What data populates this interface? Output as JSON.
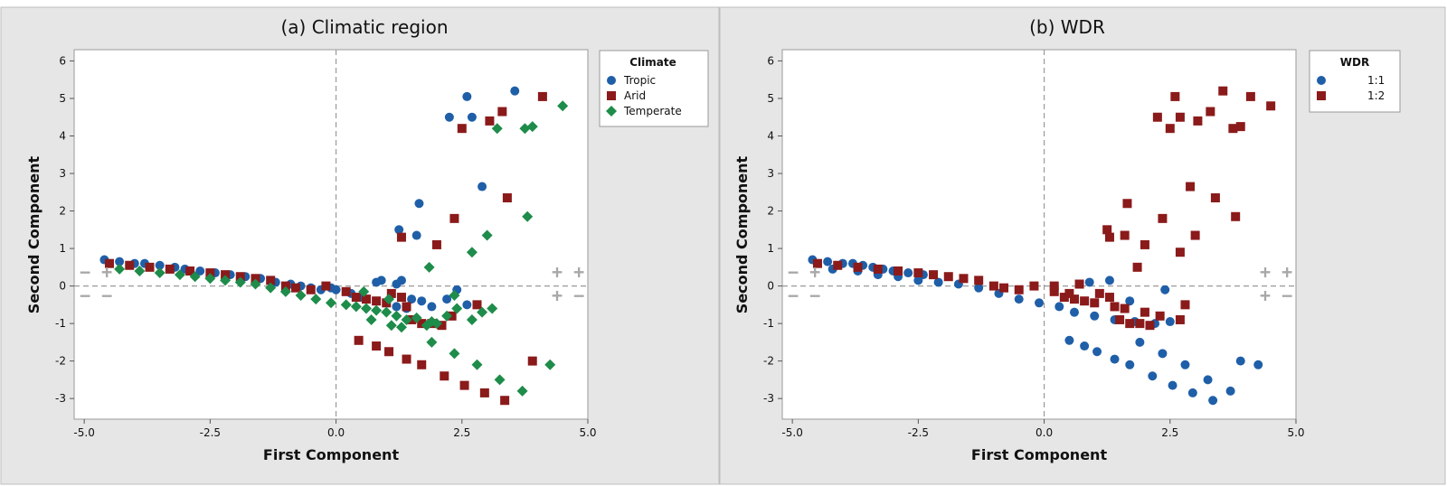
{
  "colors": {
    "tropic": "#1f5fa8",
    "arid": "#8b1a1a",
    "temperate": "#1e8c4a",
    "wdr_1_1": "#1f5fa8",
    "wdr_1_2": "#8b1a1a"
  },
  "chart_data": [
    {
      "type": "scatter",
      "title": "(a) Climatic region",
      "xlabel": "First Component",
      "ylabel": "Second Component",
      "xlim": [
        -5.2,
        5.0
      ],
      "ylim": [
        -3.55,
        6.3
      ],
      "x_ticks": [
        "-5.0",
        "-2.5",
        "0.0",
        "2.5",
        "5.0"
      ],
      "y_ticks": [
        "-3",
        "-2",
        "-1",
        "0",
        "1",
        "2",
        "3",
        "4",
        "5",
        "6"
      ],
      "reference_lines": {
        "x": 0,
        "y": 0
      },
      "quadrant_labels": {
        "top_left": "− +",
        "bottom_left": "− −",
        "top_right": "+ +",
        "bottom_right": "+ −"
      },
      "legend": {
        "title": "Climate",
        "position": "right"
      },
      "series": [
        {
          "name": "Tropic",
          "marker": "circle",
          "color": "#1f5fa8",
          "points": [
            [
              -4.6,
              0.7
            ],
            [
              -4.3,
              0.65
            ],
            [
              -4.0,
              0.6
            ],
            [
              -3.8,
              0.6
            ],
            [
              -3.5,
              0.55
            ],
            [
              -3.2,
              0.5
            ],
            [
              -3.0,
              0.45
            ],
            [
              -2.7,
              0.4
            ],
            [
              -2.4,
              0.35
            ],
            [
              -2.1,
              0.3
            ],
            [
              -1.8,
              0.25
            ],
            [
              -1.5,
              0.2
            ],
            [
              -1.2,
              0.1
            ],
            [
              -0.9,
              0.05
            ],
            [
              -0.7,
              0.0
            ],
            [
              -0.5,
              -0.05
            ],
            [
              -0.3,
              -0.1
            ],
            [
              -0.1,
              -0.05
            ],
            [
              0.0,
              -0.1
            ],
            [
              0.3,
              -0.2
            ],
            [
              0.5,
              -0.3
            ],
            [
              0.8,
              0.1
            ],
            [
              0.9,
              0.15
            ],
            [
              1.2,
              0.05
            ],
            [
              1.3,
              0.15
            ],
            [
              1.2,
              -0.55
            ],
            [
              1.4,
              -0.6
            ],
            [
              1.5,
              -0.35
            ],
            [
              1.7,
              -0.4
            ],
            [
              1.9,
              -0.55
            ],
            [
              2.2,
              -0.35
            ],
            [
              2.4,
              -0.1
            ],
            [
              2.6,
              -0.5
            ],
            [
              1.25,
              1.5
            ],
            [
              1.6,
              1.35
            ],
            [
              1.65,
              2.2
            ],
            [
              2.9,
              2.65
            ],
            [
              2.25,
              4.5
            ],
            [
              2.6,
              5.05
            ],
            [
              2.7,
              4.5
            ],
            [
              3.55,
              5.2
            ]
          ]
        },
        {
          "name": "Arid",
          "marker": "square",
          "color": "#8b1a1a",
          "points": [
            [
              -4.5,
              0.6
            ],
            [
              -4.1,
              0.55
            ],
            [
              -3.7,
              0.5
            ],
            [
              -3.3,
              0.45
            ],
            [
              -2.9,
              0.4
            ],
            [
              -2.5,
              0.35
            ],
            [
              -2.2,
              0.3
            ],
            [
              -1.9,
              0.25
            ],
            [
              -1.6,
              0.2
            ],
            [
              -1.3,
              0.15
            ],
            [
              -1.0,
              0.0
            ],
            [
              -0.8,
              -0.05
            ],
            [
              -0.5,
              -0.1
            ],
            [
              -0.2,
              0.0
            ],
            [
              0.2,
              -0.15
            ],
            [
              0.4,
              -0.3
            ],
            [
              0.6,
              -0.35
            ],
            [
              0.8,
              -0.4
            ],
            [
              1.0,
              -0.45
            ],
            [
              1.3,
              -0.3
            ],
            [
              1.4,
              -0.55
            ],
            [
              1.5,
              -0.9
            ],
            [
              1.7,
              -1.0
            ],
            [
              1.9,
              -1.0
            ],
            [
              2.1,
              -1.05
            ],
            [
              2.3,
              -0.8
            ],
            [
              1.3,
              1.3
            ],
            [
              2.0,
              1.1
            ],
            [
              2.35,
              1.8
            ],
            [
              3.4,
              2.35
            ],
            [
              2.5,
              4.2
            ],
            [
              3.05,
              4.4
            ],
            [
              3.3,
              4.65
            ],
            [
              4.1,
              5.05
            ],
            [
              0.45,
              -1.45
            ],
            [
              0.8,
              -1.6
            ],
            [
              1.05,
              -1.75
            ],
            [
              1.4,
              -1.95
            ],
            [
              1.7,
              -2.1
            ],
            [
              2.15,
              -2.4
            ],
            [
              2.55,
              -2.65
            ],
            [
              2.95,
              -2.85
            ],
            [
              3.35,
              -3.05
            ],
            [
              3.9,
              -2.0
            ],
            [
              2.8,
              -0.5
            ],
            [
              1.1,
              -0.2
            ]
          ]
        },
        {
          "name": "Temperate",
          "marker": "diamond",
          "color": "#1e8c4a",
          "points": [
            [
              -4.3,
              0.45
            ],
            [
              -3.9,
              0.4
            ],
            [
              -3.5,
              0.35
            ],
            [
              -3.1,
              0.3
            ],
            [
              -2.8,
              0.25
            ],
            [
              -2.5,
              0.2
            ],
            [
              -2.2,
              0.15
            ],
            [
              -1.9,
              0.1
            ],
            [
              -1.6,
              0.05
            ],
            [
              -1.3,
              -0.05
            ],
            [
              -1.0,
              -0.15
            ],
            [
              -0.7,
              -0.25
            ],
            [
              -0.4,
              -0.35
            ],
            [
              -0.1,
              -0.45
            ],
            [
              0.2,
              -0.5
            ],
            [
              0.4,
              -0.55
            ],
            [
              0.6,
              -0.6
            ],
            [
              0.8,
              -0.65
            ],
            [
              1.0,
              -0.7
            ],
            [
              1.2,
              -0.8
            ],
            [
              1.4,
              -0.9
            ],
            [
              1.6,
              -0.85
            ],
            [
              1.8,
              -1.05
            ],
            [
              2.0,
              -1.0
            ],
            [
              2.2,
              -0.8
            ],
            [
              2.4,
              -0.6
            ],
            [
              2.7,
              -0.9
            ],
            [
              2.9,
              -0.7
            ],
            [
              3.1,
              -0.6
            ],
            [
              0.7,
              -0.9
            ],
            [
              1.1,
              -1.05
            ],
            [
              1.3,
              -1.1
            ],
            [
              1.85,
              0.5
            ],
            [
              2.7,
              0.9
            ],
            [
              3.0,
              1.35
            ],
            [
              2.35,
              -0.25
            ],
            [
              1.9,
              -0.95
            ],
            [
              1.05,
              -0.35
            ],
            [
              3.8,
              1.85
            ],
            [
              3.2,
              4.2
            ],
            [
              3.75,
              4.2
            ],
            [
              3.9,
              4.25
            ],
            [
              4.5,
              4.8
            ],
            [
              1.9,
              -1.5
            ],
            [
              2.35,
              -1.8
            ],
            [
              2.8,
              -2.1
            ],
            [
              3.25,
              -2.5
            ],
            [
              3.7,
              -2.8
            ],
            [
              4.25,
              -2.1
            ],
            [
              0.55,
              -0.15
            ]
          ]
        }
      ]
    },
    {
      "type": "scatter",
      "title": "(b) WDR",
      "xlabel": "First Component",
      "ylabel": "Second Component",
      "xlim": [
        -5.2,
        5.0
      ],
      "ylim": [
        -3.55,
        6.3
      ],
      "x_ticks": [
        "-5.0",
        "-2.5",
        "0.0",
        "2.5",
        "5.0"
      ],
      "y_ticks": [
        "-3",
        "-2",
        "-1",
        "0",
        "1",
        "2",
        "3",
        "4",
        "5",
        "6"
      ],
      "reference_lines": {
        "x": 0,
        "y": 0
      },
      "quadrant_labels": {
        "top_left": "− +",
        "bottom_left": "− −",
        "top_right": "+ +",
        "bottom_right": "+ −"
      },
      "legend": {
        "title": "WDR",
        "position": "right"
      },
      "series": [
        {
          "name": "1:1",
          "marker": "circle",
          "color": "#1f5fa8",
          "points": [
            [
              -4.6,
              0.7
            ],
            [
              -4.3,
              0.65
            ],
            [
              -4.0,
              0.6
            ],
            [
              -3.8,
              0.6
            ],
            [
              -3.6,
              0.55
            ],
            [
              -3.4,
              0.5
            ],
            [
              -3.2,
              0.45
            ],
            [
              -3.0,
              0.4
            ],
            [
              -2.7,
              0.35
            ],
            [
              -2.4,
              0.3
            ],
            [
              -4.2,
              0.45
            ],
            [
              -3.7,
              0.4
            ],
            [
              -3.3,
              0.3
            ],
            [
              -2.9,
              0.25
            ],
            [
              -2.5,
              0.15
            ],
            [
              -2.1,
              0.1
            ],
            [
              -1.7,
              0.05
            ],
            [
              -1.3,
              -0.05
            ],
            [
              -0.9,
              -0.2
            ],
            [
              -0.5,
              -0.35
            ],
            [
              -0.1,
              -0.45
            ],
            [
              0.3,
              -0.55
            ],
            [
              0.6,
              -0.7
            ],
            [
              1.0,
              -0.8
            ],
            [
              1.4,
              -0.9
            ],
            [
              1.8,
              -0.95
            ],
            [
              2.2,
              -1.0
            ],
            [
              2.5,
              -0.95
            ],
            [
              0.9,
              0.1
            ],
            [
              1.3,
              0.15
            ],
            [
              1.7,
              -0.4
            ],
            [
              2.4,
              -0.1
            ],
            [
              0.5,
              -1.45
            ],
            [
              0.8,
              -1.6
            ],
            [
              1.05,
              -1.75
            ],
            [
              1.4,
              -1.95
            ],
            [
              1.7,
              -2.1
            ],
            [
              2.15,
              -2.4
            ],
            [
              2.55,
              -2.65
            ],
            [
              2.95,
              -2.85
            ],
            [
              3.35,
              -3.05
            ],
            [
              3.9,
              -2.0
            ],
            [
              4.25,
              -2.1
            ],
            [
              2.8,
              -2.1
            ],
            [
              3.25,
              -2.5
            ],
            [
              3.7,
              -2.8
            ],
            [
              2.35,
              -1.8
            ],
            [
              1.9,
              -1.5
            ]
          ]
        },
        {
          "name": "1:2",
          "marker": "square",
          "color": "#8b1a1a",
          "points": [
            [
              -4.5,
              0.6
            ],
            [
              -4.1,
              0.55
            ],
            [
              -3.7,
              0.5
            ],
            [
              -3.3,
              0.45
            ],
            [
              -2.9,
              0.4
            ],
            [
              -2.5,
              0.35
            ],
            [
              -2.2,
              0.3
            ],
            [
              -1.9,
              0.25
            ],
            [
              -1.6,
              0.2
            ],
            [
              -1.3,
              0.15
            ],
            [
              -1.0,
              0.0
            ],
            [
              -0.8,
              -0.05
            ],
            [
              -0.5,
              -0.1
            ],
            [
              -0.2,
              0.0
            ],
            [
              0.2,
              -0.15
            ],
            [
              0.4,
              -0.3
            ],
            [
              0.6,
              -0.35
            ],
            [
              0.8,
              -0.4
            ],
            [
              1.0,
              -0.45
            ],
            [
              1.3,
              -0.3
            ],
            [
              1.4,
              -0.55
            ],
            [
              1.5,
              -0.9
            ],
            [
              1.7,
              -1.0
            ],
            [
              1.9,
              -1.0
            ],
            [
              2.1,
              -1.05
            ],
            [
              2.3,
              -0.8
            ],
            [
              0.2,
              0.0
            ],
            [
              0.5,
              -0.2
            ],
            [
              0.7,
              0.05
            ],
            [
              1.1,
              -0.2
            ],
            [
              1.6,
              -0.6
            ],
            [
              2.0,
              -0.7
            ],
            [
              2.8,
              -0.5
            ],
            [
              2.7,
              -0.9
            ],
            [
              1.3,
              1.3
            ],
            [
              1.25,
              1.5
            ],
            [
              1.65,
              2.2
            ],
            [
              1.6,
              1.35
            ],
            [
              2.0,
              1.1
            ],
            [
              2.35,
              1.8
            ],
            [
              1.85,
              0.5
            ],
            [
              2.7,
              0.9
            ],
            [
              3.0,
              1.35
            ],
            [
              3.8,
              1.85
            ],
            [
              2.9,
              2.65
            ],
            [
              3.4,
              2.35
            ],
            [
              2.25,
              4.5
            ],
            [
              2.5,
              4.2
            ],
            [
              2.6,
              5.05
            ],
            [
              2.7,
              4.5
            ],
            [
              3.05,
              4.4
            ],
            [
              3.3,
              4.65
            ],
            [
              3.55,
              5.2
            ],
            [
              3.75,
              4.2
            ],
            [
              3.9,
              4.25
            ],
            [
              4.1,
              5.05
            ],
            [
              4.5,
              4.8
            ]
          ]
        }
      ]
    }
  ]
}
